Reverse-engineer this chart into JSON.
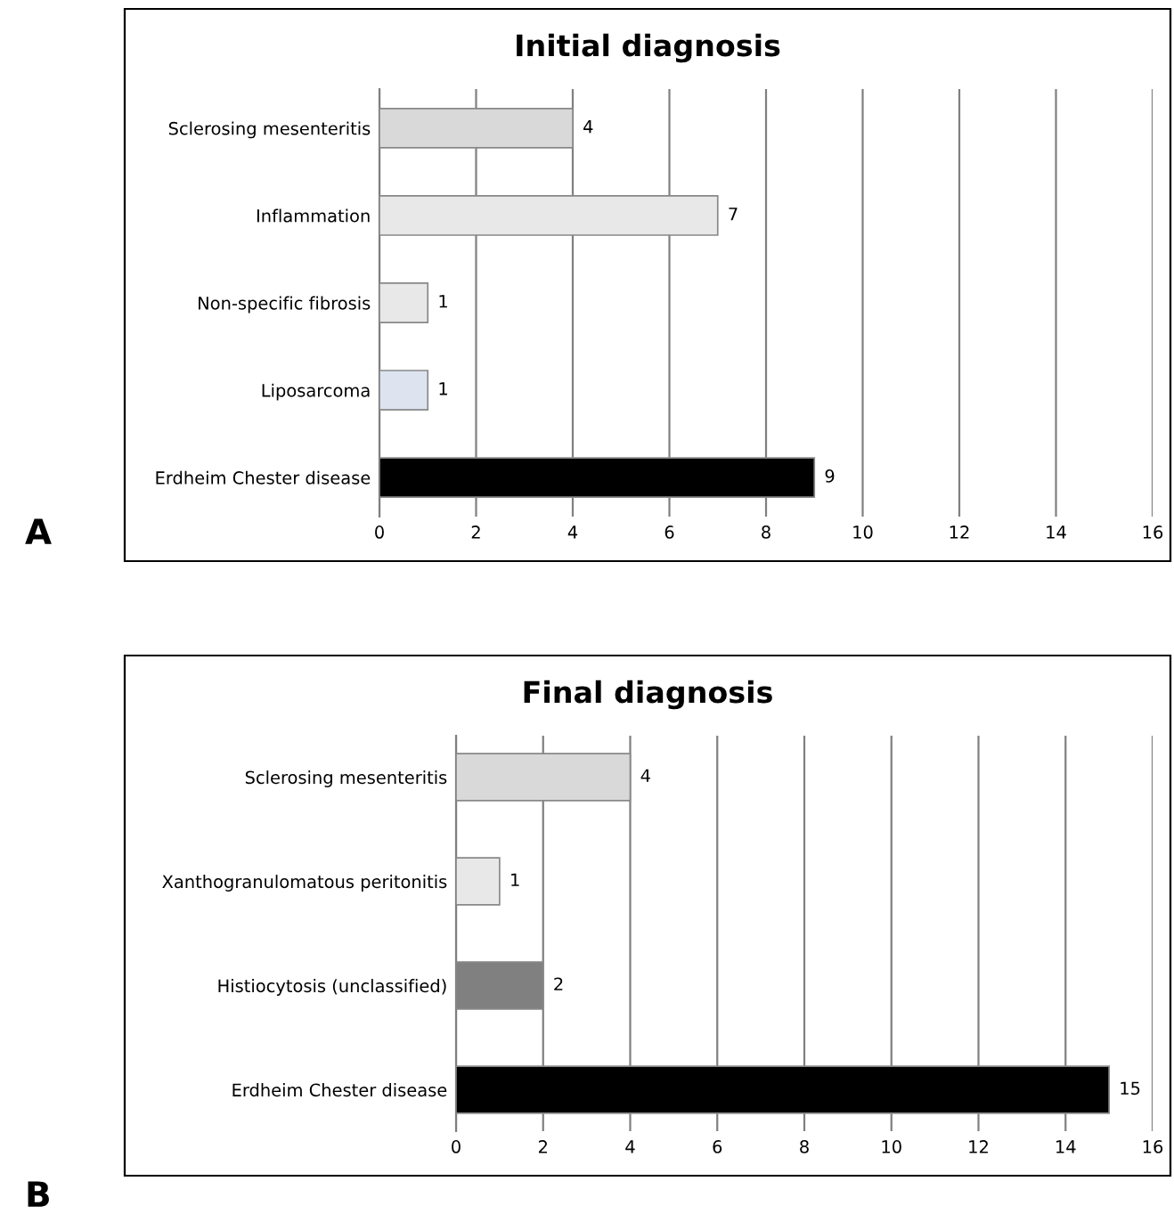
{
  "chart_data": [
    {
      "type": "bar",
      "orientation": "horizontal",
      "title": "Initial diagnosis",
      "categories": [
        "Sclerosing mesenteritis",
        "Inflammation",
        "Non-specific fibrosis",
        "Liposarcoma",
        "Erdheim Chester disease"
      ],
      "values": [
        4,
        7,
        1,
        1,
        9
      ],
      "colors": [
        "#d9d9d9",
        "#e8e8e8",
        "#e8e8e8",
        "#dde4f0",
        "#000000"
      ],
      "xlim": [
        0,
        16
      ],
      "xticks": [
        0,
        2,
        4,
        6,
        8,
        10,
        12,
        14,
        16
      ],
      "grid": "x",
      "data_labels": true,
      "annotations": [
        "A"
      ]
    },
    {
      "type": "bar",
      "orientation": "horizontal",
      "title": "Final diagnosis",
      "categories": [
        "Sclerosing mesenteritis",
        "Xanthogranulomatous peritonitis",
        "Histiocytosis (unclassified)",
        "Erdheim Chester disease"
      ],
      "values": [
        4,
        1,
        2,
        15
      ],
      "colors": [
        "#d9d9d9",
        "#e8e8e8",
        "#808080",
        "#000000"
      ],
      "xlim": [
        0,
        16
      ],
      "xticks": [
        0,
        2,
        4,
        6,
        8,
        10,
        12,
        14,
        16
      ],
      "grid": "x",
      "data_labels": true,
      "annotations": [
        "B"
      ]
    }
  ]
}
